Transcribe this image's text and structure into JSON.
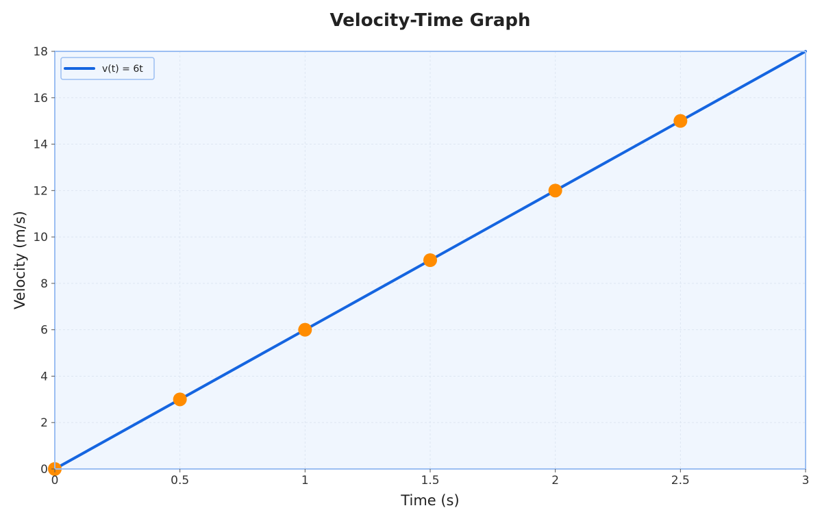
{
  "chart_data": {
    "type": "line",
    "title": "Velocity-Time Graph",
    "xlabel": "Time (s)",
    "ylabel": "Velocity (m/s)",
    "xlim": [
      0,
      3
    ],
    "ylim": [
      0,
      18
    ],
    "x_ticks": [
      "0",
      "0.5",
      "1",
      "1.5",
      "2",
      "2.5",
      "3"
    ],
    "y_ticks": [
      "0",
      "2",
      "4",
      "6",
      "8",
      "10",
      "12",
      "14",
      "16",
      "18"
    ],
    "grid": true,
    "legend_position": "top-left",
    "series": [
      {
        "name": "v(t) = 6t",
        "kind": "line",
        "color": "#1565e0",
        "x": [
          0,
          3
        ],
        "y": [
          0,
          18
        ]
      }
    ],
    "markers": {
      "color": "#ff8c00",
      "x": [
        0,
        0.5,
        1,
        1.5,
        2,
        2.5
      ],
      "y": [
        0,
        3,
        6,
        9,
        12,
        15
      ]
    },
    "colors": {
      "plot_background": "#f0f6fe",
      "frame": "#9bbef2",
      "grid": "#dde6f2"
    }
  }
}
